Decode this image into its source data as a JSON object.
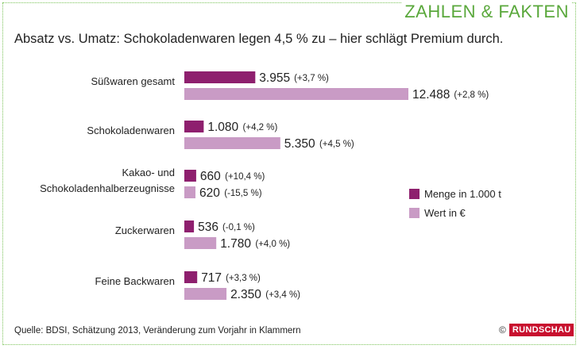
{
  "header_tag": "ZAHLEN & FAKTEN",
  "source": "Quelle: BDSI, Schätzung 2013, Veränderung zum Vorjahr in Klammern",
  "copyright_symbol": "©",
  "logo_text": "RUNDSCHAU",
  "colors": {
    "menge": "#8e1f6e",
    "wert": "#c99bc5",
    "accent": "#5aa83c"
  },
  "chart_data": {
    "type": "bar",
    "orientation": "horizontal",
    "title": "Absatz vs. Umatz: Schokoladenwaren legen 4,5 % zu – hier schlägt Premium durch.",
    "categories": [
      [
        "Süßwaren gesamt"
      ],
      [
        "Schokoladenwaren"
      ],
      [
        "Kakao- und",
        "Schokoladenhalberzeugnisse"
      ],
      [
        "Zuckerwaren"
      ],
      [
        "Feine Backwaren"
      ]
    ],
    "series": [
      {
        "name": "Menge in 1.000 t",
        "color": "#8e1f6e",
        "values": [
          3955,
          1080,
          660,
          536,
          717
        ],
        "value_labels": [
          "3.955",
          "1.080",
          "660",
          "536",
          "717"
        ],
        "change_labels": [
          "(+3,7 %)",
          "(+4,2 %)",
          "(+10,4 %)",
          "(-0,1 %)",
          "(+3,3 %)"
        ]
      },
      {
        "name": "Wert in €",
        "color": "#c99bc5",
        "values": [
          12488,
          5350,
          620,
          1780,
          2350
        ],
        "value_labels": [
          "12.488",
          "5.350",
          "620",
          "1.780",
          "2.350"
        ],
        "change_labels": [
          "(+2,8 %)",
          "(+4,5 %)",
          "(-15,5 %)",
          "(+4,0 %)",
          "(+3,4 %)"
        ]
      }
    ],
    "legend_position": "right",
    "grid": false
  }
}
